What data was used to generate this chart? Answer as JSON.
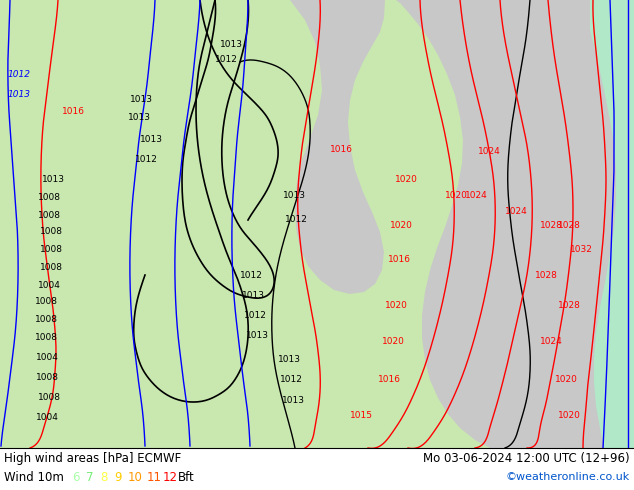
{
  "title_left": "High wind areas [hPa] ECMWF",
  "title_right": "Mo 03-06-2024 12:00 UTC (12+96)",
  "legend_label": "Wind 10m",
  "legend_numbers": [
    "6",
    "7",
    "8",
    "9",
    "10",
    "11",
    "12"
  ],
  "legend_colors": [
    "#aaffaa",
    "#77ee77",
    "#ffff44",
    "#ffcc00",
    "#ff9900",
    "#ff5500",
    "#ff0000"
  ],
  "legend_suffix": "Bft",
  "copyright": "©weatheronline.co.uk",
  "bg_color": "#ffffff",
  "title_fontsize": 8.5,
  "legend_fontsize": 8.5,
  "copyright_color": "#0055cc",
  "land_green": "#c8e8b0",
  "sea_gray": "#c8c8c8",
  "light_gray": "#d8d8d8",
  "teal_strip": "#80d8c8"
}
